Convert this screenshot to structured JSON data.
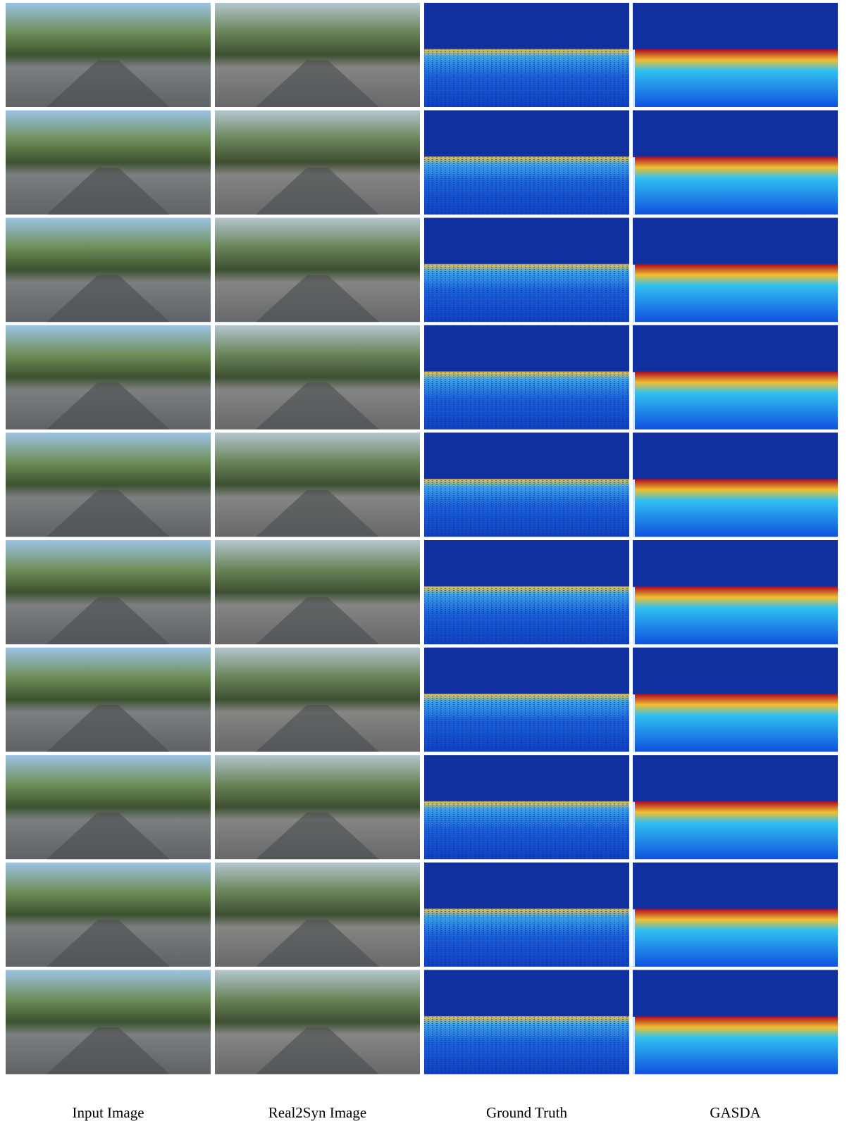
{
  "captions": [
    "Input Image",
    "Real2Syn Image",
    "Ground Truth",
    "GASDA"
  ]
}
